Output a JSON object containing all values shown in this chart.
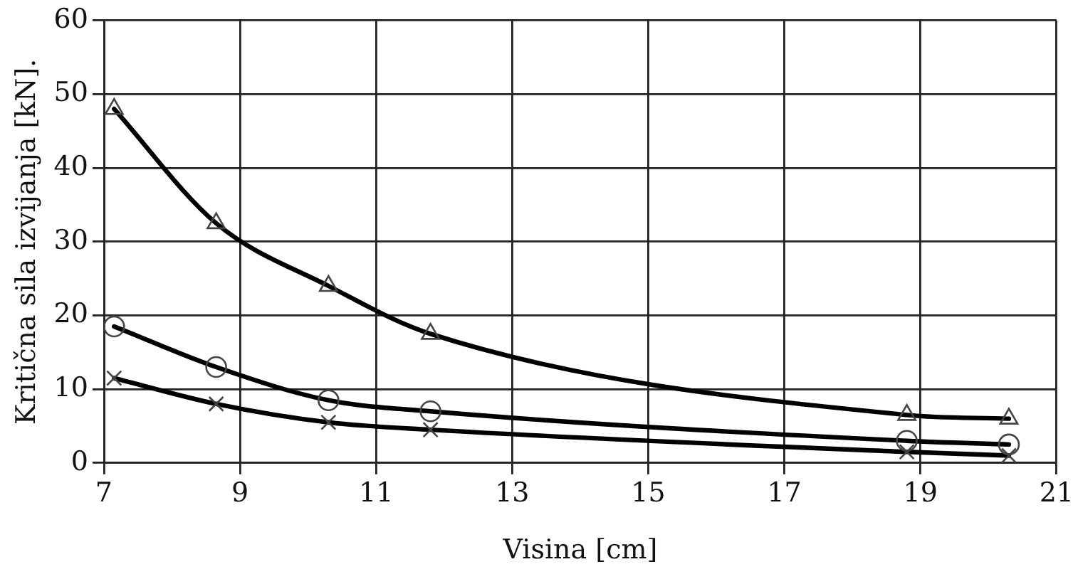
{
  "chart_data": {
    "type": "line",
    "xlabel": "Visina [cm]",
    "ylabel": "Kritična sila izvijanja [kN].",
    "x": [
      7.15,
      8.65,
      10.3,
      11.8,
      18.8,
      20.3
    ],
    "series": [
      {
        "color": "#000000",
        "marker": "triangle",
        "values": [
          48,
          32.5,
          24,
          17.5,
          6.5,
          6
        ]
      },
      {
        "color": "#000000",
        "marker": "circle",
        "values": [
          18.5,
          13,
          8.5,
          7,
          3,
          2.5
        ]
      },
      {
        "color": "#000000",
        "marker": "cross",
        "values": [
          11.5,
          8,
          5.5,
          4.5,
          1.5,
          1
        ]
      }
    ],
    "xlim": [
      7,
      21
    ],
    "xticks": [
      7,
      9,
      11,
      13,
      15,
      17,
      19,
      21
    ],
    "ylim": [
      0,
      60
    ],
    "yticks": [
      0,
      10,
      20,
      30,
      40,
      50,
      60
    ],
    "grid": true,
    "legend": false
  }
}
